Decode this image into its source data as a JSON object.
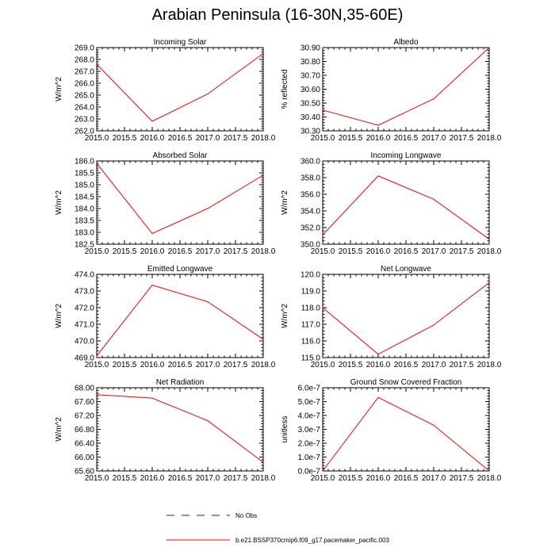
{
  "title": "Arabian Peninsula (16-30N,35-60E)",
  "legend": {
    "obs_label": "No Obs",
    "model_label": "b.e21.BSSP370cmip6.f09_g17.pacemaker_pacific.003",
    "obs_color": "#1a1aa0",
    "model_color": "#ff0000"
  },
  "chart_data": [
    {
      "type": "line",
      "title": "Incoming Solar",
      "ylabel": "W/m^2",
      "xlim": [
        2015,
        2018
      ],
      "ylim": [
        262,
        269
      ],
      "xticks": [
        "2015.0",
        "2015.5",
        "2016.0",
        "2016.5",
        "2017.0",
        "2017.5",
        "2018.0"
      ],
      "yticks": [
        "262.0",
        "263.0",
        "264.0",
        "265.0",
        "266.0",
        "267.0",
        "268.0",
        "269.0"
      ],
      "x": [
        2015,
        2016,
        2017,
        2018
      ],
      "values": [
        267.6,
        262.8,
        265.1,
        268.5
      ]
    },
    {
      "type": "line",
      "title": "Albedo",
      "ylabel": "% reflected",
      "xlim": [
        2015,
        2018
      ],
      "ylim": [
        30.3,
        30.9
      ],
      "xticks": [
        "2015.0",
        "2015.5",
        "2016.0",
        "2016.5",
        "2017.0",
        "2017.5",
        "2018.0"
      ],
      "yticks": [
        "30.30",
        "30.40",
        "30.50",
        "30.60",
        "30.70",
        "30.80",
        "30.90"
      ],
      "x": [
        2015,
        2016,
        2017,
        2018
      ],
      "values": [
        30.45,
        30.34,
        30.53,
        30.9
      ]
    },
    {
      "type": "line",
      "title": "Absorbed Solar",
      "ylabel": "W/m^2",
      "xlim": [
        2015,
        2018
      ],
      "ylim": [
        182.5,
        186
      ],
      "xticks": [
        "2015.0",
        "2015.5",
        "2016.0",
        "2016.5",
        "2017.0",
        "2017.5",
        "2018.0"
      ],
      "yticks": [
        "182.5",
        "183.0",
        "183.5",
        "184.0",
        "184.5",
        "185.0",
        "185.5",
        "186.0"
      ],
      "x": [
        2015,
        2016,
        2017,
        2018
      ],
      "values": [
        185.9,
        182.95,
        184.0,
        185.4
      ]
    },
    {
      "type": "line",
      "title": "Incoming Longwave",
      "ylabel": "W/m^2",
      "xlim": [
        2015,
        2018
      ],
      "ylim": [
        350,
        360
      ],
      "xticks": [
        "2015.0",
        "2015.5",
        "2016.0",
        "2016.5",
        "2017.0",
        "2017.5",
        "2018.0"
      ],
      "yticks": [
        "350.0",
        "352.0",
        "354.0",
        "356.0",
        "358.0",
        "360.0"
      ],
      "x": [
        2015,
        2016,
        2017,
        2018
      ],
      "values": [
        351.1,
        358.2,
        355.4,
        350.6
      ]
    },
    {
      "type": "line",
      "title": "Emitted Longwave",
      "ylabel": "W/m^2",
      "xlim": [
        2015,
        2018
      ],
      "ylim": [
        469,
        474
      ],
      "xticks": [
        "2015.0",
        "2015.5",
        "2016.0",
        "2016.5",
        "2017.0",
        "2017.5",
        "2018.0"
      ],
      "yticks": [
        "469.0",
        "470.0",
        "471.0",
        "472.0",
        "473.0",
        "474.0"
      ],
      "x": [
        2015,
        2016,
        2017,
        2018
      ],
      "values": [
        469.1,
        473.35,
        472.35,
        470.1
      ]
    },
    {
      "type": "line",
      "title": "Net Longwave",
      "ylabel": "W/m^2",
      "xlim": [
        2015,
        2018
      ],
      "ylim": [
        115,
        120
      ],
      "xticks": [
        "2015.0",
        "2015.5",
        "2016.0",
        "2016.5",
        "2017.0",
        "2017.5",
        "2018.0"
      ],
      "yticks": [
        "115.0",
        "116.0",
        "117.0",
        "118.0",
        "119.0",
        "120.0"
      ],
      "x": [
        2015,
        2016,
        2017,
        2018
      ],
      "values": [
        118.0,
        115.2,
        116.95,
        119.5
      ]
    },
    {
      "type": "line",
      "title": "Net Radiation",
      "ylabel": "W/m^2",
      "xlim": [
        2015,
        2018
      ],
      "ylim": [
        65.6,
        68
      ],
      "xticks": [
        "2015.0",
        "2015.5",
        "2016.0",
        "2016.5",
        "2017.0",
        "2017.5",
        "2018.0"
      ],
      "yticks": [
        "65.60",
        "66.00",
        "66.40",
        "66.80",
        "67.20",
        "67.60",
        "68.00"
      ],
      "x": [
        2015,
        2016,
        2017,
        2018
      ],
      "values": [
        67.8,
        67.7,
        67.05,
        65.85
      ]
    },
    {
      "type": "line",
      "title": "Ground Snow Covered Fraction",
      "ylabel": "unitless",
      "xlim": [
        2015,
        2018
      ],
      "ylim": [
        0,
        6e-07
      ],
      "xticks": [
        "2015.0",
        "2015.5",
        "2016.0",
        "2016.5",
        "2017.0",
        "2017.5",
        "2018.0"
      ],
      "yticks": [
        "0.0e-7",
        "1.0e-7",
        "2.0e-7",
        "3.0e-7",
        "4.0e-7",
        "5.0e-7",
        "6.0e-7"
      ],
      "x": [
        2015,
        2016,
        2017,
        2018
      ],
      "values": [
        0.0,
        5.3e-07,
        3.3e-07,
        0.0
      ]
    }
  ]
}
